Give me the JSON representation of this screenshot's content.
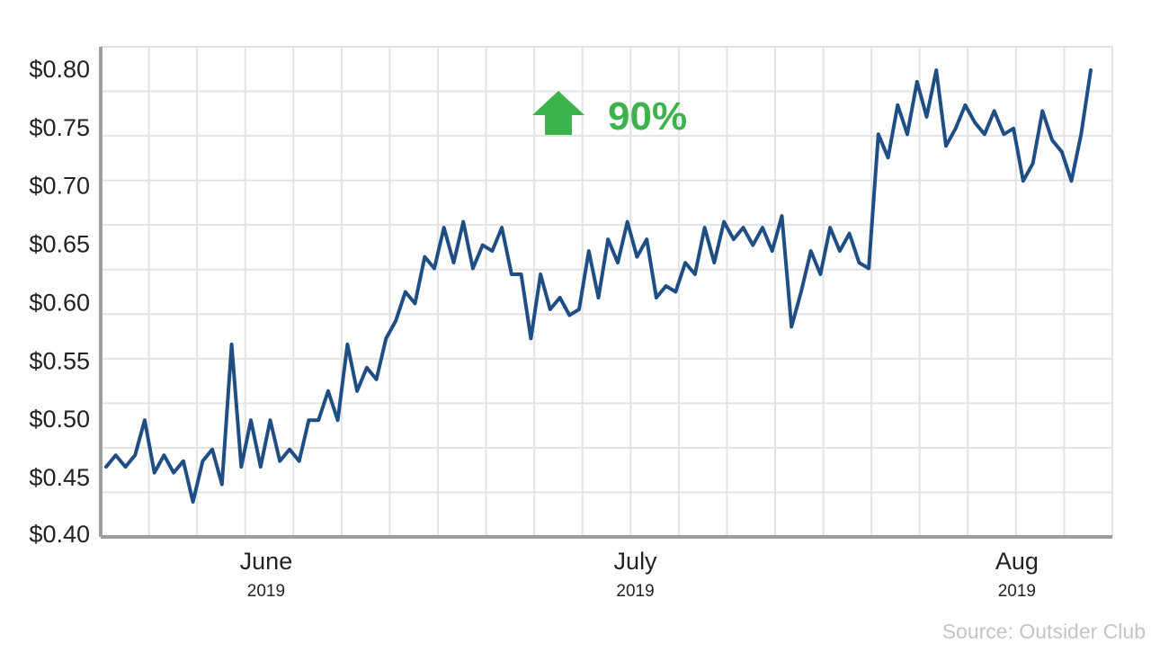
{
  "chart_data": {
    "type": "line",
    "title": "",
    "xlabel": "",
    "ylabel": "",
    "ylim": [
      0.4,
      0.82
    ],
    "y_ticks": [
      {
        "value": 0.4,
        "label": "$0.40"
      },
      {
        "value": 0.45,
        "label": "$0.45"
      },
      {
        "value": 0.5,
        "label": "$0.50"
      },
      {
        "value": 0.55,
        "label": "$0.55"
      },
      {
        "value": 0.6,
        "label": "$0.60"
      },
      {
        "value": 0.65,
        "label": "$0.65"
      },
      {
        "value": 0.7,
        "label": "$0.70"
      },
      {
        "value": 0.75,
        "label": "$0.75"
      },
      {
        "value": 0.8,
        "label": "$0.80"
      }
    ],
    "x_ticks": [
      {
        "date": "2019-06-01",
        "month": "June",
        "year": "2019"
      },
      {
        "date": "2019-07-01",
        "month": "July",
        "year": "2019"
      },
      {
        "date": "2019-08-01",
        "month": "Aug",
        "year": "2019"
      }
    ],
    "xlim": [
      "2019-05-19",
      "2019-08-07"
    ],
    "grid": true,
    "line_color": "#1f4e84",
    "series": [
      {
        "values": [
          {
            "x": "2019-05-19",
            "y": 0.46
          },
          {
            "x": "2019-05-19",
            "y": 0.47
          },
          {
            "x": "2019-05-20",
            "y": 0.46
          },
          {
            "x": "2019-05-21",
            "y": 0.47
          },
          {
            "x": "2019-05-21",
            "y": 0.5
          },
          {
            "x": "2019-05-23",
            "y": 0.455
          },
          {
            "x": "2019-05-24",
            "y": 0.47
          },
          {
            "x": "2019-05-24",
            "y": 0.455
          },
          {
            "x": "2019-05-25",
            "y": 0.465
          },
          {
            "x": "2019-05-25",
            "y": 0.43
          },
          {
            "x": "2019-05-26",
            "y": 0.465
          },
          {
            "x": "2019-05-27",
            "y": 0.475
          },
          {
            "x": "2019-05-27",
            "y": 0.445
          },
          {
            "x": "2019-05-29",
            "y": 0.565
          },
          {
            "x": "2019-05-29",
            "y": 0.46
          },
          {
            "x": "2019-05-30",
            "y": 0.5
          },
          {
            "x": "2019-05-31",
            "y": 0.46
          },
          {
            "x": "2019-05-31",
            "y": 0.5
          },
          {
            "x": "2019-06-01",
            "y": 0.465
          },
          {
            "x": "2019-06-01",
            "y": 0.475
          },
          {
            "x": "2019-06-02",
            "y": 0.465
          },
          {
            "x": "2019-06-03",
            "y": 0.5
          },
          {
            "x": "2019-06-04",
            "y": 0.5
          },
          {
            "x": "2019-06-05",
            "y": 0.525
          },
          {
            "x": "2019-06-05",
            "y": 0.5
          },
          {
            "x": "2019-06-06",
            "y": 0.565
          },
          {
            "x": "2019-06-07",
            "y": 0.525
          },
          {
            "x": "2019-06-08",
            "y": 0.545
          },
          {
            "x": "2019-06-09",
            "y": 0.535
          },
          {
            "x": "2019-06-10",
            "y": 0.57
          },
          {
            "x": "2019-06-11",
            "y": 0.585
          },
          {
            "x": "2019-06-11",
            "y": 0.61
          },
          {
            "x": "2019-06-12",
            "y": 0.6
          },
          {
            "x": "2019-06-13",
            "y": 0.64
          },
          {
            "x": "2019-06-13",
            "y": 0.63
          },
          {
            "x": "2019-06-14",
            "y": 0.665
          },
          {
            "x": "2019-06-15",
            "y": 0.635
          },
          {
            "x": "2019-06-16",
            "y": 0.67
          },
          {
            "x": "2019-06-16",
            "y": 0.63
          },
          {
            "x": "2019-06-17",
            "y": 0.65
          },
          {
            "x": "2019-06-18",
            "y": 0.645
          },
          {
            "x": "2019-06-18",
            "y": 0.665
          },
          {
            "x": "2019-06-19",
            "y": 0.625
          },
          {
            "x": "2019-06-20",
            "y": 0.625
          },
          {
            "x": "2019-06-20",
            "y": 0.57
          },
          {
            "x": "2019-06-21",
            "y": 0.625
          },
          {
            "x": "2019-06-22",
            "y": 0.595
          },
          {
            "x": "2019-06-22",
            "y": 0.605
          },
          {
            "x": "2019-06-23",
            "y": 0.59
          },
          {
            "x": "2019-06-24",
            "y": 0.595
          },
          {
            "x": "2019-06-24",
            "y": 0.645
          },
          {
            "x": "2019-06-25",
            "y": 0.605
          },
          {
            "x": "2019-06-26",
            "y": 0.655
          },
          {
            "x": "2019-06-26",
            "y": 0.635
          },
          {
            "x": "2019-06-27",
            "y": 0.67
          },
          {
            "x": "2019-06-28",
            "y": 0.64
          },
          {
            "x": "2019-07-01",
            "y": 0.655
          },
          {
            "x": "2019-07-02",
            "y": 0.605
          },
          {
            "x": "2019-07-03",
            "y": 0.615
          },
          {
            "x": "2019-07-04",
            "y": 0.61
          },
          {
            "x": "2019-07-05",
            "y": 0.635
          },
          {
            "x": "2019-07-05",
            "y": 0.625
          },
          {
            "x": "2019-07-06",
            "y": 0.665
          },
          {
            "x": "2019-07-07",
            "y": 0.635
          },
          {
            "x": "2019-07-08",
            "y": 0.67
          },
          {
            "x": "2019-07-09",
            "y": 0.655
          },
          {
            "x": "2019-07-10",
            "y": 0.665
          },
          {
            "x": "2019-07-11",
            "y": 0.65
          },
          {
            "x": "2019-07-12",
            "y": 0.665
          },
          {
            "x": "2019-07-13",
            "y": 0.645
          },
          {
            "x": "2019-07-14",
            "y": 0.675
          },
          {
            "x": "2019-07-14",
            "y": 0.58
          },
          {
            "x": "2019-07-15",
            "y": 0.61
          },
          {
            "x": "2019-07-16",
            "y": 0.645
          },
          {
            "x": "2019-07-17",
            "y": 0.625
          },
          {
            "x": "2019-07-18",
            "y": 0.665
          },
          {
            "x": "2019-07-19",
            "y": 0.645
          },
          {
            "x": "2019-07-20",
            "y": 0.66
          },
          {
            "x": "2019-07-21",
            "y": 0.635
          },
          {
            "x": "2019-07-22",
            "y": 0.63
          },
          {
            "x": "2019-07-22",
            "y": 0.745
          },
          {
            "x": "2019-07-23",
            "y": 0.725
          },
          {
            "x": "2019-07-24",
            "y": 0.77
          },
          {
            "x": "2019-07-25",
            "y": 0.745
          },
          {
            "x": "2019-07-26",
            "y": 0.79
          },
          {
            "x": "2019-07-27",
            "y": 0.76
          },
          {
            "x": "2019-07-28",
            "y": 0.8
          },
          {
            "x": "2019-07-29",
            "y": 0.735
          },
          {
            "x": "2019-07-30",
            "y": 0.75
          },
          {
            "x": "2019-07-31",
            "y": 0.77
          },
          {
            "x": "2019-07-31",
            "y": 0.755
          },
          {
            "x": "2019-08-01",
            "y": 0.745
          },
          {
            "x": "2019-08-01",
            "y": 0.765
          },
          {
            "x": "2019-08-02",
            "y": 0.745
          },
          {
            "x": "2019-08-03",
            "y": 0.75
          },
          {
            "x": "2019-08-03",
            "y": 0.705
          },
          {
            "x": "2019-08-04",
            "y": 0.72
          },
          {
            "x": "2019-08-04",
            "y": 0.765
          },
          {
            "x": "2019-08-05",
            "y": 0.74
          },
          {
            "x": "2019-08-06",
            "y": 0.73
          },
          {
            "x": "2019-08-06",
            "y": 0.705
          },
          {
            "x": "2019-08-07",
            "y": 0.745
          },
          {
            "x": "2019-08-07",
            "y": 0.8
          }
        ]
      }
    ],
    "annotation": {
      "text": "90%",
      "color": "#3cb44b",
      "icon": "up-arrow-icon"
    }
  },
  "source": "Source: Outsider Club"
}
